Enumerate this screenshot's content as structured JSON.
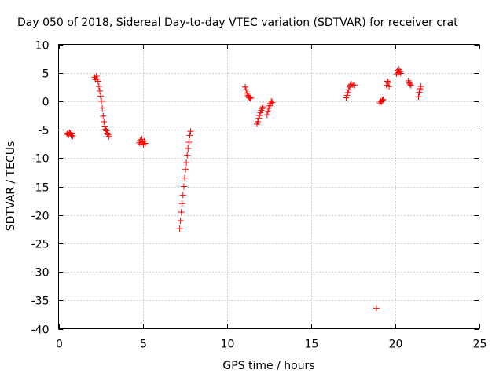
{
  "chart_data": {
    "type": "scatter",
    "title": "Day 050 of 2018, Sidereal Day-to-day VTEC variation (SDTVAR) for receiver crat",
    "xlabel": "GPS time / hours",
    "ylabel": "SDTVAR / TECUs",
    "xlim": [
      0,
      25
    ],
    "ylim": [
      -40,
      10
    ],
    "xticks": [
      0,
      5,
      10,
      15,
      20,
      25
    ],
    "yticks": [
      10,
      5,
      0,
      -5,
      -10,
      -15,
      -20,
      -25,
      -30,
      -35,
      -40
    ],
    "grid": true,
    "marker": "+",
    "color": "#ff0000",
    "series": [
      {
        "name": "SDTVAR",
        "points": [
          [
            0.5,
            -5.8
          ],
          [
            0.55,
            -5.6
          ],
          [
            0.6,
            -5.9
          ],
          [
            0.65,
            -5.5
          ],
          [
            0.7,
            -5.7
          ],
          [
            0.75,
            -6.0
          ],
          [
            0.8,
            -5.6
          ],
          [
            0.85,
            -6.1
          ],
          [
            2.15,
            4.2
          ],
          [
            2.2,
            3.8
          ],
          [
            2.25,
            4.4
          ],
          [
            2.3,
            3.9
          ],
          [
            2.35,
            3.5
          ],
          [
            2.4,
            2.6
          ],
          [
            2.45,
            1.8
          ],
          [
            2.5,
            0.9
          ],
          [
            2.55,
            0.0
          ],
          [
            2.6,
            -1.2
          ],
          [
            2.65,
            -2.6
          ],
          [
            2.7,
            -3.6
          ],
          [
            2.75,
            -4.5
          ],
          [
            2.8,
            -4.9
          ],
          [
            2.85,
            -5.2
          ],
          [
            2.9,
            -5.6
          ],
          [
            2.95,
            -5.9
          ],
          [
            3.0,
            -6.2
          ],
          [
            4.8,
            -7.3
          ],
          [
            4.85,
            -6.9
          ],
          [
            4.9,
            -7.5
          ],
          [
            4.95,
            -6.7
          ],
          [
            5.0,
            -7.2
          ],
          [
            5.05,
            -7.6
          ],
          [
            5.1,
            -7.0
          ],
          [
            5.15,
            -7.4
          ],
          [
            7.2,
            -22.4
          ],
          [
            7.25,
            -21.0
          ],
          [
            7.3,
            -19.5
          ],
          [
            7.35,
            -18.0
          ],
          [
            7.4,
            -16.5
          ],
          [
            7.45,
            -15.0
          ],
          [
            7.5,
            -13.5
          ],
          [
            7.55,
            -12.0
          ],
          [
            7.6,
            -10.8
          ],
          [
            7.65,
            -9.5
          ],
          [
            7.7,
            -8.3
          ],
          [
            7.75,
            -7.2
          ],
          [
            7.8,
            -6.0
          ],
          [
            7.85,
            -5.3
          ],
          [
            11.1,
            2.5
          ],
          [
            11.15,
            2.0
          ],
          [
            11.2,
            1.4
          ],
          [
            11.25,
            1.0
          ],
          [
            11.3,
            0.8
          ],
          [
            11.35,
            0.6
          ],
          [
            11.4,
            0.5
          ],
          [
            11.45,
            0.7
          ],
          [
            11.8,
            -4.0
          ],
          [
            11.85,
            -3.6
          ],
          [
            11.9,
            -3.0
          ],
          [
            11.95,
            -2.5
          ],
          [
            12.0,
            -2.0
          ],
          [
            12.05,
            -1.6
          ],
          [
            12.1,
            -1.3
          ],
          [
            12.15,
            -1.0
          ],
          [
            12.4,
            -2.4
          ],
          [
            12.45,
            -1.8
          ],
          [
            12.5,
            -1.2
          ],
          [
            12.55,
            -0.8
          ],
          [
            12.6,
            -0.4
          ],
          [
            12.65,
            0.0
          ],
          [
            12.7,
            -0.2
          ],
          [
            17.1,
            0.6
          ],
          [
            17.15,
            1.0
          ],
          [
            17.2,
            1.5
          ],
          [
            17.25,
            2.0
          ],
          [
            17.3,
            2.5
          ],
          [
            17.35,
            2.8
          ],
          [
            17.4,
            3.0
          ],
          [
            17.5,
            2.9
          ],
          [
            17.6,
            2.8
          ],
          [
            18.9,
            -36.4
          ],
          [
            19.1,
            -0.3
          ],
          [
            19.15,
            0.0
          ],
          [
            19.2,
            -0.1
          ],
          [
            19.25,
            0.2
          ],
          [
            19.3,
            0.3
          ],
          [
            19.5,
            2.8
          ],
          [
            19.55,
            3.5
          ],
          [
            19.6,
            3.3
          ],
          [
            19.65,
            2.6
          ],
          [
            20.1,
            4.8
          ],
          [
            20.15,
            5.4
          ],
          [
            20.2,
            5.0
          ],
          [
            20.25,
            5.6
          ],
          [
            20.3,
            5.2
          ],
          [
            20.35,
            4.9
          ],
          [
            20.8,
            3.6
          ],
          [
            20.85,
            3.2
          ],
          [
            20.9,
            3.0
          ],
          [
            20.95,
            2.8
          ],
          [
            21.4,
            0.8
          ],
          [
            21.45,
            1.6
          ],
          [
            21.5,
            2.2
          ],
          [
            21.55,
            2.6
          ]
        ]
      }
    ]
  }
}
